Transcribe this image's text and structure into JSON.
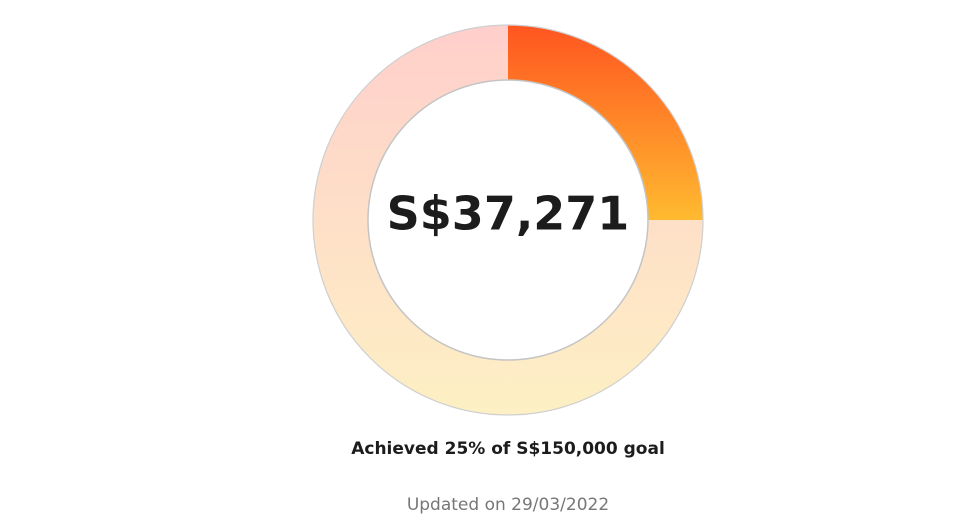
{
  "chart_data": {
    "type": "donut",
    "center_label": "S$37,271",
    "caption": "Achieved 25% of S$150,000 goal",
    "footnote": "Updated on 29/03/2022",
    "values": [
      25,
      75
    ],
    "colors": [
      [
        "#ff5520",
        "#ffba30"
      ],
      [
        "#ffcfcb",
        "#fdf0c4"
      ]
    ]
  }
}
